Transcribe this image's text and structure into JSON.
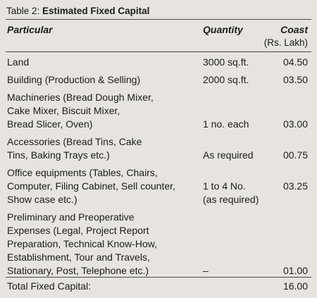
{
  "table": {
    "caption_prefix": "Table 2: ",
    "caption_title": "Estimated Fixed Capital",
    "headers": {
      "particular": "Particular",
      "quantity": "Quantity",
      "cost": "Coast",
      "cost_unit": "(Rs. Lakh)"
    },
    "rows": [
      {
        "particular": "Land",
        "quantity": "3000 sq.ft.",
        "cost": "04.50"
      },
      {
        "particular": "Building (Production & Selling)",
        "quantity": "2000 sq.ft.",
        "cost": "03.50"
      },
      {
        "particular": "Machineries (Bread Dough Mixer,\nCake Mixer, Biscuit Mixer,\nBread Slicer, Oven)",
        "quantity": "1 no. each",
        "cost": "03.00"
      },
      {
        "particular": "Accessories (Bread Tins, Cake\nTins, Baking Trays etc.)",
        "quantity": "As required",
        "cost": "00.75"
      },
      {
        "particular": "Office equipments (Tables, Chairs,\nComputer, Filing Cabinet, Sell counter,\nShow case etc.)",
        "quantity": "1 to 4 No.\n(as required)",
        "cost": "03.25"
      },
      {
        "particular": "Preliminary and Preoperative\nExpenses (Legal, Project Report\nPreparation, Technical Know-How,\nEstablishment, Tour and Travels,\nStationary, Post, Telephone etc.)",
        "quantity": "–",
        "cost": "01.00"
      }
    ],
    "total": {
      "label": "Total Fixed Capital:",
      "cost": "16.00"
    }
  }
}
